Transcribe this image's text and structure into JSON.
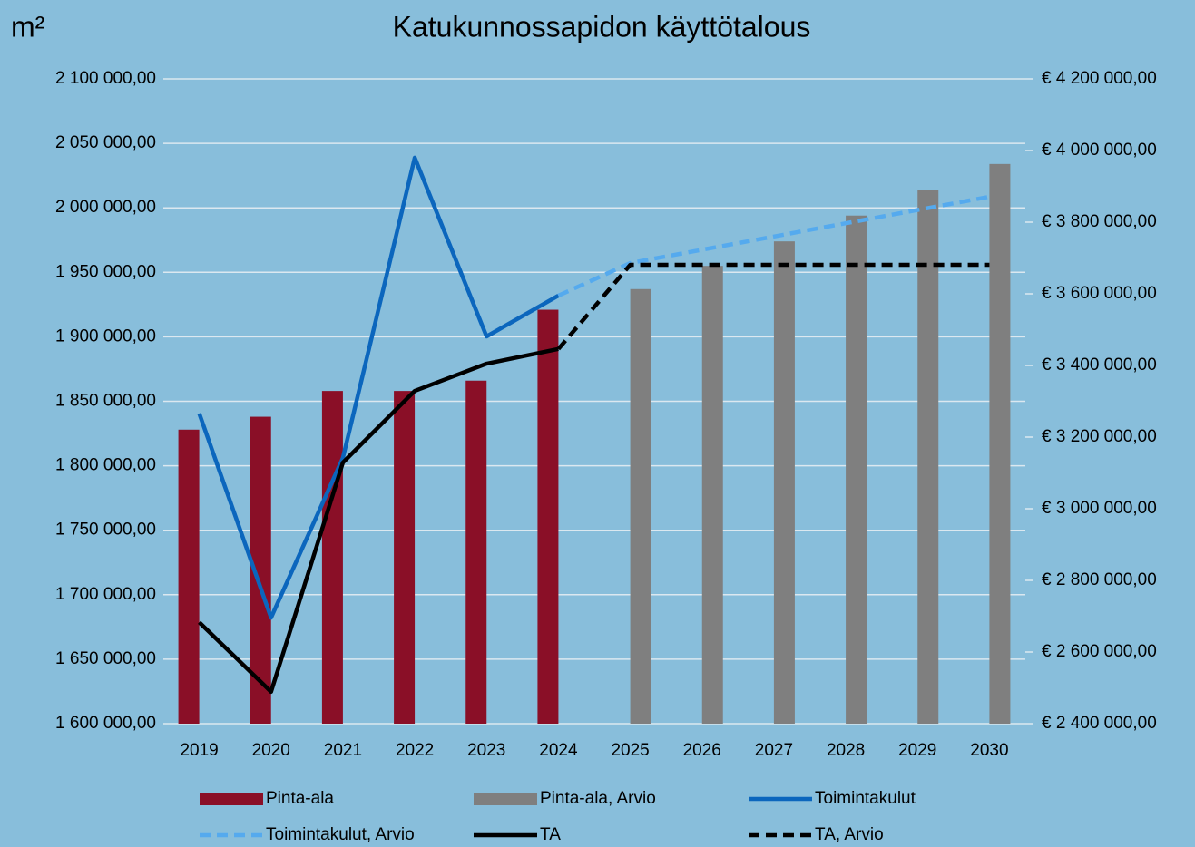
{
  "chart_data": {
    "type": "bar",
    "title": "Katukunnossapidon käyttötalous",
    "y_label": "m²",
    "categories": [
      "2019",
      "2020",
      "2021",
      "2022",
      "2023",
      "2024",
      "2025",
      "2026",
      "2027",
      "2028",
      "2029",
      "2030"
    ],
    "ylim": [
      1600000,
      2100000
    ],
    "yticks": [
      {
        "value": 1600000,
        "label": "1 600 000,00"
      },
      {
        "value": 1650000,
        "label": "1 650 000,00"
      },
      {
        "value": 1700000,
        "label": "1 700 000,00"
      },
      {
        "value": 1750000,
        "label": "1 750 000,00"
      },
      {
        "value": 1800000,
        "label": "1 800 000,00"
      },
      {
        "value": 1850000,
        "label": "1 850 000,00"
      },
      {
        "value": 1900000,
        "label": "1 900 000,00"
      },
      {
        "value": 1950000,
        "label": "1 950 000,00"
      },
      {
        "value": 2000000,
        "label": "2 000 000,00"
      },
      {
        "value": 2050000,
        "label": "2 050 000,00"
      },
      {
        "value": 2100000,
        "label": "2 100 000,00"
      }
    ],
    "y2lim": [
      2400000,
      4200000
    ],
    "y2ticks": [
      {
        "value": 2400000,
        "label": "€ 2 400 000,00"
      },
      {
        "value": 2600000,
        "label": "€ 2 600 000,00"
      },
      {
        "value": 2800000,
        "label": "€ 2 800 000,00"
      },
      {
        "value": 3000000,
        "label": "€ 3 000 000,00"
      },
      {
        "value": 3200000,
        "label": "€ 3 200 000,00"
      },
      {
        "value": 3400000,
        "label": "€ 3 400 000,00"
      },
      {
        "value": 3600000,
        "label": "€ 3 600 000,00"
      },
      {
        "value": 3800000,
        "label": "€ 3 800 000,00"
      },
      {
        "value": 4000000,
        "label": "€ 4 000 000,00"
      },
      {
        "value": 4200000,
        "label": "€ 4 200 000,00"
      }
    ],
    "grid": true,
    "legend": "bottom",
    "series": [
      {
        "name": "Pinta-ala",
        "type": "bar",
        "color": "#8a0f27",
        "values": [
          1828000,
          1838000,
          1858000,
          1858000,
          1866000,
          1921000,
          null,
          null,
          null,
          null,
          null,
          null
        ]
      },
      {
        "name": "Pinta-ala, Arvio",
        "type": "bar",
        "color": "#7f7f7f",
        "values": [
          null,
          null,
          null,
          null,
          null,
          null,
          1937000,
          1955000,
          1974000,
          1994000,
          2014000,
          2034000
        ]
      },
      {
        "name": "Toimintakulut",
        "type": "line",
        "axis": "y2",
        "color": "#0b66bd",
        "dashed": false,
        "values": [
          3266000,
          2696000,
          3142000,
          3980000,
          3481000,
          3595000,
          null,
          null,
          null,
          null,
          null,
          null
        ]
      },
      {
        "name": "Toimintakulut, Arvio",
        "type": "line",
        "axis": "y2",
        "color": "#55aaee",
        "dashed": true,
        "values": [
          null,
          null,
          null,
          null,
          null,
          3595000,
          3686000,
          3723000,
          3760000,
          3797000,
          3834000,
          3871000
        ]
      },
      {
        "name": "TA",
        "type": "line",
        "axis": "y2",
        "color": "#000000",
        "dashed": false,
        "values": [
          2683000,
          2489000,
          3129000,
          3329000,
          3405000,
          3446000,
          null,
          null,
          null,
          null,
          null,
          null
        ]
      },
      {
        "name": "TA, Arvio",
        "type": "line",
        "axis": "y2",
        "color": "#000000",
        "dashed": true,
        "values": [
          null,
          null,
          null,
          null,
          null,
          3446000,
          3681000,
          3681000,
          3681000,
          3681000,
          3681000,
          3681000
        ]
      }
    ]
  }
}
